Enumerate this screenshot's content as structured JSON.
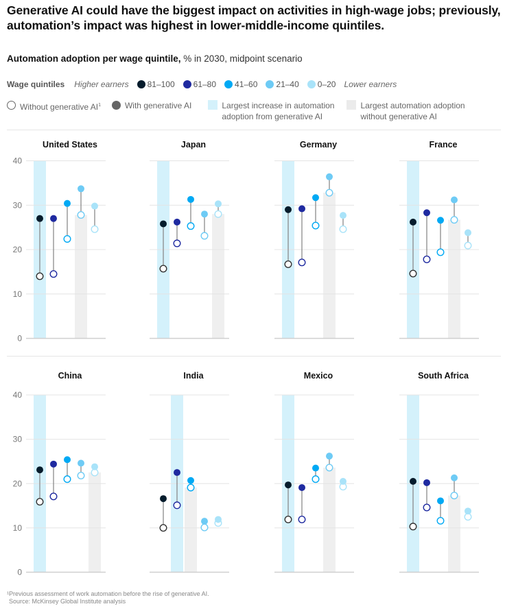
{
  "header": {
    "title": "Generative AI could have the biggest impact on activities in high-wage jobs; previously, automation’s impact was highest in lower-middle-income quintiles.",
    "subtitle_bold": "Automation adoption per wage quintile,",
    "subtitle_rest": " % in 2030, midpoint scenario"
  },
  "legend": {
    "wage_label": "Wage quintiles",
    "higher": "Higher earners",
    "lower": "Lower earners",
    "quintiles": [
      {
        "label": "81–100",
        "color": "#051c2c"
      },
      {
        "label": "61–80",
        "color": "#1f2aa0"
      },
      {
        "label": "41–60",
        "color": "#00a9f4"
      },
      {
        "label": "21–40",
        "color": "#6ecbf5"
      },
      {
        "label": "0–20",
        "color": "#a9e3f9"
      }
    ],
    "without": "Without generative AI",
    "without_sup": "1",
    "with": "With generative AI",
    "blue_band_line1": "Largest increase in automation",
    "blue_band_line2": "adoption from generative AI",
    "gray_bar_line1": "Largest automation adoption",
    "gray_bar_line2": "without generative AI",
    "colors": {
      "blue_band": "#d4f1fb",
      "gray_bar": "#efefef"
    }
  },
  "chart_data": {
    "type": "dumbbell",
    "title": "Automation adoption per wage quintile, % in 2030, midpoint scenario",
    "ylabel": "%",
    "ylim": [
      0,
      40
    ],
    "yticks": [
      0,
      10,
      20,
      30,
      40
    ],
    "grid": true,
    "categories": [
      "81–100",
      "61–80",
      "41–60",
      "21–40",
      "0–20"
    ],
    "panels": [
      {
        "country": "United States",
        "without_genai": [
          14.0,
          14.5,
          22.4,
          27.8,
          24.6
        ],
        "with_genai": [
          27.0,
          27.0,
          30.4,
          33.7,
          29.8
        ],
        "largest_increase_index": 0,
        "largest_without_index": 3
      },
      {
        "country": "Japan",
        "without_genai": [
          15.7,
          21.4,
          25.3,
          23.1,
          28.0
        ],
        "with_genai": [
          25.8,
          26.2,
          31.3,
          28.0,
          30.3
        ],
        "largest_increase_index": 0,
        "largest_without_index": 4
      },
      {
        "country": "Germany",
        "without_genai": [
          16.7,
          17.1,
          25.4,
          32.8,
          24.6
        ],
        "with_genai": [
          29.0,
          29.2,
          31.7,
          36.4,
          27.7
        ],
        "largest_increase_index": 0,
        "largest_without_index": 3
      },
      {
        "country": "France",
        "without_genai": [
          14.6,
          17.8,
          19.4,
          26.7,
          20.9
        ],
        "with_genai": [
          26.2,
          28.3,
          26.6,
          31.2,
          23.8
        ],
        "largest_increase_index": 0,
        "largest_without_index": 3
      },
      {
        "country": "China",
        "without_genai": [
          15.9,
          17.1,
          21.0,
          21.8,
          22.5
        ],
        "with_genai": [
          23.1,
          24.4,
          25.4,
          24.6,
          23.8
        ],
        "largest_increase_index": 0,
        "largest_without_index": 4
      },
      {
        "country": "India",
        "without_genai": [
          10.0,
          15.1,
          19.1,
          10.1,
          11.1
        ],
        "with_genai": [
          16.6,
          22.5,
          20.7,
          11.5,
          11.9
        ],
        "largest_increase_index": 1,
        "largest_without_index": 2
      },
      {
        "country": "Mexico",
        "without_genai": [
          11.9,
          11.9,
          21.0,
          23.6,
          19.3
        ],
        "with_genai": [
          19.7,
          19.1,
          23.5,
          26.2,
          20.5
        ],
        "largest_increase_index": 0,
        "largest_without_index": 3
      },
      {
        "country": "South Africa",
        "without_genai": [
          10.3,
          14.6,
          11.6,
          17.3,
          12.5
        ],
        "with_genai": [
          20.5,
          20.2,
          16.1,
          21.3,
          13.8
        ],
        "largest_increase_index": 0,
        "largest_without_index": 3
      }
    ]
  },
  "footnote": {
    "line1": "¹Previous assessment of work automation before the rise of generative AI.",
    "line2": "Source: McKinsey Global Institute analysis"
  }
}
